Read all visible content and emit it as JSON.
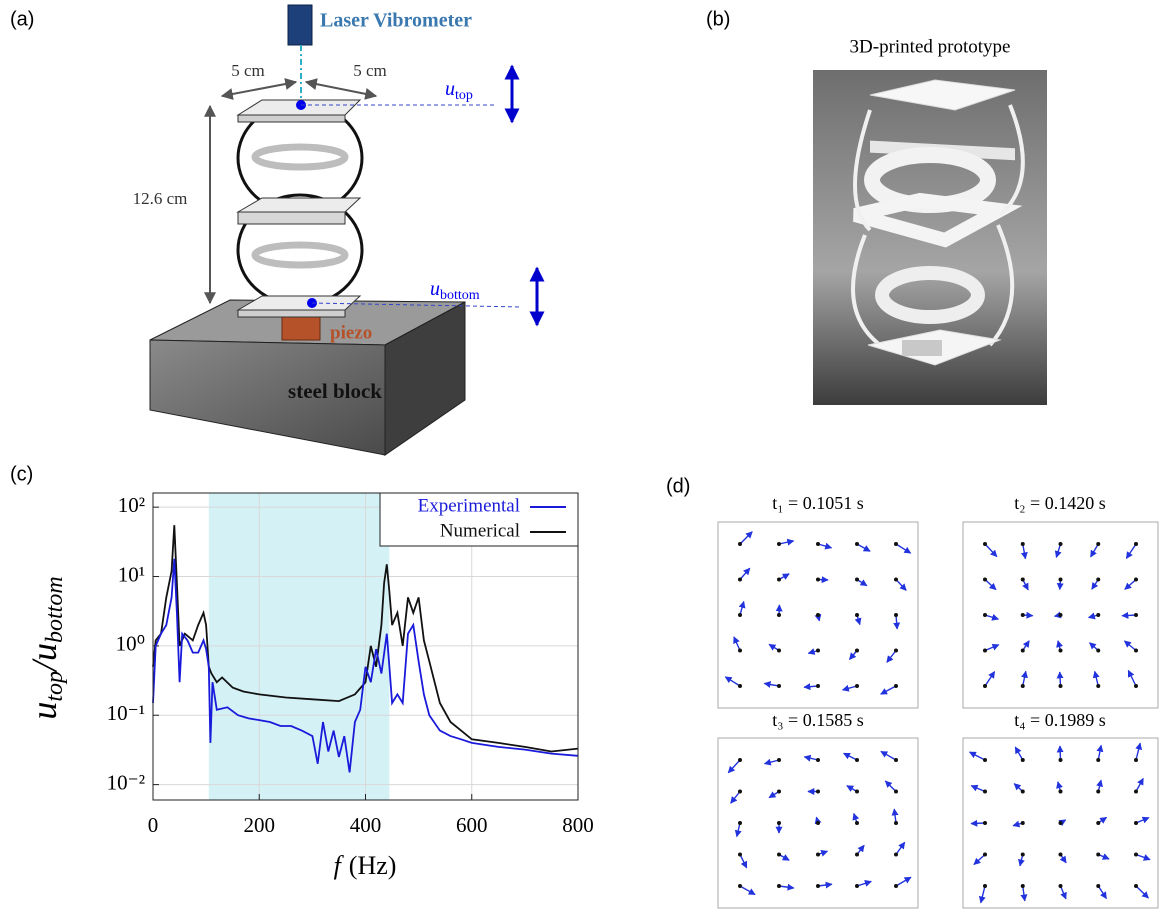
{
  "panel_labels": [
    "(a)",
    "(b)",
    "(c)",
    "(d)"
  ],
  "panel_a": {
    "laser": "Laser Vibrometer",
    "width_left": "5 cm",
    "width_right": "5 cm",
    "height": "12.6 cm",
    "u_top": {
      "symbol": "u",
      "subscript": "top"
    },
    "u_bottom": {
      "symbol": "u",
      "subscript": "bottom"
    },
    "piezo": "piezo",
    "block": "steel block"
  },
  "panel_b": {
    "title": "3D-printed prototype"
  },
  "panel_d": {
    "titles": [
      "t₁ = 0.1051 s",
      "t₂ = 0.1420 s",
      "t₃ = 0.1585 s",
      "t₄ = 0.1989 s"
    ]
  },
  "chart_data": {
    "type": "line",
    "xlabel": {
      "symbol": "f",
      "unit": "(Hz)"
    },
    "ylabel": {
      "u1": "u",
      "sub1": "top",
      "slash": "/u",
      "sub2": "bottom"
    },
    "xlim": [
      0,
      800
    ],
    "xticks": [
      0,
      200,
      400,
      600,
      800
    ],
    "ylim": [
      0.006,
      160
    ],
    "log_y": true,
    "yticks": [
      {
        "value": 0.01,
        "label": "10⁻²"
      },
      {
        "value": 0.1,
        "label": "10⁻¹"
      },
      {
        "value": 1,
        "label": "10⁰"
      },
      {
        "value": 10,
        "label": "10¹"
      },
      {
        "value": 100,
        "label": "10²"
      }
    ],
    "grid": true,
    "legend": "upper right",
    "band": [
      105,
      445
    ],
    "band_color": "#cdeef5",
    "series": [
      {
        "name": "Experimental",
        "color": "#1a1adb",
        "x": [
          0,
          5,
          15,
          25,
          35,
          40,
          45,
          50,
          55,
          65,
          75,
          85,
          95,
          100,
          105,
          108,
          112,
          120,
          140,
          160,
          180,
          200,
          220,
          240,
          260,
          280,
          300,
          310,
          320,
          330,
          340,
          350,
          360,
          370,
          380,
          390,
          400,
          410,
          420,
          430,
          440,
          445,
          450,
          460,
          470,
          480,
          490,
          500,
          510,
          520,
          540,
          560,
          580,
          600,
          650,
          700,
          750,
          800
        ],
        "values": [
          0.15,
          1.0,
          1.5,
          2,
          5,
          18,
          3,
          0.3,
          1.5,
          1.2,
          0.8,
          0.8,
          1.2,
          0.9,
          0.5,
          0.04,
          0.3,
          0.12,
          0.13,
          0.1,
          0.09,
          0.085,
          0.08,
          0.07,
          0.07,
          0.06,
          0.05,
          0.02,
          0.08,
          0.03,
          0.06,
          0.025,
          0.05,
          0.015,
          0.08,
          0.12,
          0.5,
          0.3,
          0.9,
          0.4,
          1.5,
          0.5,
          0.15,
          0.2,
          0.15,
          1.5,
          2,
          0.6,
          0.2,
          0.1,
          0.06,
          0.05,
          0.045,
          0.04,
          0.035,
          0.032,
          0.028,
          0.026
        ]
      },
      {
        "name": "Numerical",
        "color": "#111111",
        "x": [
          0,
          5,
          15,
          25,
          35,
          40,
          45,
          50,
          60,
          75,
          85,
          95,
          100,
          105,
          110,
          120,
          130,
          150,
          170,
          200,
          250,
          300,
          350,
          380,
          400,
          410,
          420,
          430,
          435,
          440,
          445,
          450,
          460,
          470,
          480,
          490,
          500,
          510,
          520,
          540,
          560,
          580,
          600,
          650,
          700,
          750,
          800
        ],
        "values": [
          0.5,
          1.2,
          1.5,
          5,
          12,
          55,
          8,
          1.0,
          1.5,
          1.2,
          2,
          3,
          2,
          0.5,
          0.4,
          0.3,
          0.35,
          0.25,
          0.22,
          0.2,
          0.18,
          0.17,
          0.16,
          0.2,
          0.3,
          1.0,
          0.5,
          2,
          8,
          15,
          6,
          2,
          3,
          1,
          5,
          3,
          5,
          1.2,
          0.6,
          0.15,
          0.08,
          0.06,
          0.045,
          0.04,
          0.035,
          0.03,
          0.033
        ]
      }
    ]
  }
}
